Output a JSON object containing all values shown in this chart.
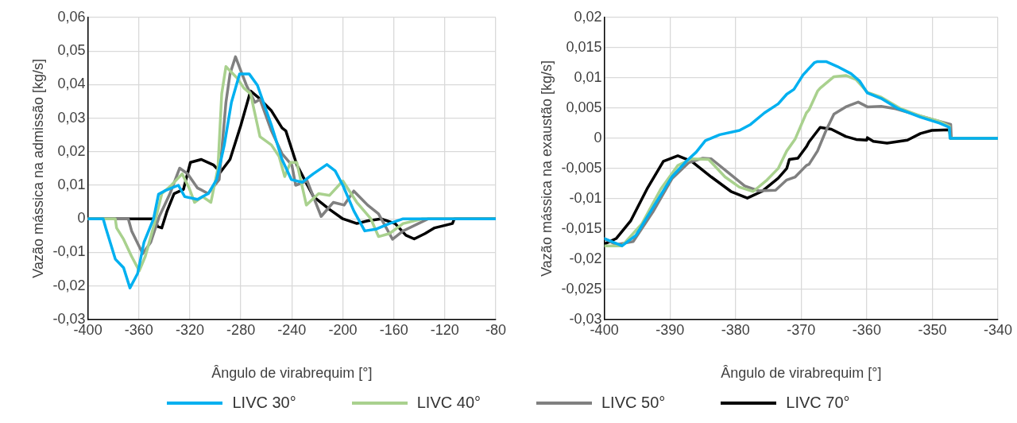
{
  "chart_data": [
    {
      "type": "line",
      "xlabel": "Ângulo de virabrequim [°]",
      "ylabel": "Vazão mássica na admissão [kg/s]",
      "xlim": [
        -400,
        -80
      ],
      "xticks": [
        -400,
        -360,
        -320,
        -280,
        -240,
        -200,
        -160,
        -120,
        -80
      ],
      "ylim": [
        -0.03,
        0.06
      ],
      "yticks": [
        {
          "value": -0.03,
          "label": "-0,03"
        },
        {
          "value": -0.02,
          "label": "-0,02"
        },
        {
          "value": -0.01,
          "label": "-0,01"
        },
        {
          "value": 0,
          "label": "0"
        },
        {
          "value": 0.01,
          "label": "0,01"
        },
        {
          "value": 0.02,
          "label": "0,02"
        },
        {
          "value": 0.03,
          "label": "0,03"
        },
        {
          "value": 0.04,
          "label": "0,04"
        },
        {
          "value": 0.05,
          "label": "0,05"
        },
        {
          "value": 0.06,
          "label": "0,06"
        }
      ],
      "grid": true,
      "legend": "bottom",
      "line_style": "solid",
      "marker": "none",
      "series": [
        {
          "name": "LIVC 30°",
          "color": "#00b0f0",
          "x": [
            -400,
            -388,
            -386,
            -378.5,
            -372,
            -367,
            -361,
            -356,
            -348.5,
            -344.6,
            -340,
            -329,
            -324,
            -314,
            -305.6,
            -299,
            -293,
            -287.4,
            -281,
            -273.5,
            -267,
            -256,
            -247.7,
            -240.4,
            -231.8,
            -223.2,
            -212.5,
            -206,
            -200,
            -191.4,
            -182.8,
            -174.2,
            -163.4,
            -152.7,
            -80
          ],
          "values": [
            0,
            0,
            -0.0027,
            -0.012,
            -0.0146,
            -0.0206,
            -0.0163,
            -0.007,
            0,
            0.0073,
            0.0083,
            0.01,
            0.0066,
            0.0058,
            0.0075,
            0.0117,
            0.022,
            0.0347,
            0.0432,
            0.0432,
            0.0398,
            0.0279,
            0.0177,
            0.0117,
            0.0109,
            0.0134,
            0.0162,
            0.0143,
            0.01,
            0.0024,
            -0.0036,
            -0.0031,
            -0.0014,
            0,
            0
          ]
        },
        {
          "name": "LIVC 40°",
          "color": "#a9d18e",
          "x": [
            -400,
            -378.5,
            -377.5,
            -372,
            -365.7,
            -359.7,
            -355,
            -347.5,
            -342,
            -335.6,
            -326,
            -320.6,
            -316.3,
            -310,
            -303.5,
            -298,
            -295,
            -291.7,
            -288.5,
            -283,
            -277.7,
            -272.4,
            -265,
            -256,
            -250,
            -245.6,
            -241,
            -236.1,
            -228.6,
            -219,
            -210.4,
            -200,
            -189,
            -178,
            -172,
            -163.4,
            -152.7,
            -137.6,
            -80
          ],
          "values": [
            0,
            0,
            -0.0027,
            -0.0061,
            -0.0112,
            -0.0155,
            -0.0112,
            -0.001,
            0.0075,
            0.0096,
            0.0134,
            0.0092,
            0.0049,
            0.0066,
            0.0049,
            0.0151,
            0.0373,
            0.0454,
            0.0441,
            0.042,
            0.039,
            0.0373,
            0.0245,
            0.022,
            0.0186,
            0.0126,
            0.0168,
            0.0168,
            0.0041,
            0.0075,
            0.007,
            0.0113,
            0.0049,
            0,
            -0.0053,
            -0.0044,
            -0.0014,
            0,
            0
          ]
        },
        {
          "name": "LIVC 50°",
          "color": "#808080",
          "x": [
            -400,
            -368.3,
            -365.7,
            -357,
            -350.7,
            -344,
            -335.6,
            -328,
            -321.7,
            -314,
            -305.6,
            -297,
            -291.7,
            -288.5,
            -284.2,
            -280,
            -275.6,
            -269,
            -265,
            -256,
            -247.7,
            -240,
            -237,
            -228,
            -217,
            -207.5,
            -199,
            -191.4,
            -180.6,
            -172,
            -161,
            -152.7,
            -133,
            -80
          ],
          "values": [
            0,
            0,
            -0.0036,
            -0.0104,
            -0.007,
            0.0007,
            0.0075,
            0.0151,
            0.0134,
            0.0092,
            0.0075,
            0.0117,
            0.0347,
            0.0432,
            0.0483,
            0.0441,
            0.0398,
            0.0347,
            0.0356,
            0.0262,
            0.0194,
            0.016,
            0.01,
            0.0113,
            0.0007,
            0.0049,
            0.0041,
            0.0083,
            0.0041,
            0.0015,
            -0.0061,
            -0.0036,
            0,
            0
          ]
        },
        {
          "name": "LIVC 70°",
          "color": "#000000",
          "x": [
            -400,
            -347.5,
            -345.3,
            -342,
            -337.8,
            -332.4,
            -325,
            -319.6,
            -311,
            -301.3,
            -296,
            -288.5,
            -280,
            -272.4,
            -267,
            -256,
            -247.7,
            -244.7,
            -236,
            -223,
            -210.4,
            -200,
            -189,
            -180.6,
            -170,
            -159,
            -150.5,
            -144,
            -135.5,
            -128,
            -114,
            -112.5,
            -80
          ],
          "values": [
            0,
            0,
            -0.0023,
            -0.0027,
            0.0024,
            0.0075,
            0.0088,
            0.0168,
            0.0177,
            0.016,
            0.0139,
            0.0177,
            0.0279,
            0.0381,
            0.0364,
            0.0322,
            0.0271,
            0.0262,
            0.016,
            0.0066,
            0.0028,
            0,
            -0.0014,
            -0.0006,
            0,
            -0.0014,
            -0.0049,
            -0.006,
            -0.0044,
            -0.0027,
            -0.0014,
            0,
            0
          ]
        }
      ]
    },
    {
      "type": "line",
      "xlabel": "Ângulo de virabrequim [°]",
      "ylabel": "Vazão mássica na exaustão [kg/s]",
      "xlim": [
        -400,
        -340
      ],
      "xticks": [
        -400,
        -390,
        -380,
        -370,
        -360,
        -350,
        -340
      ],
      "ylim": [
        -0.03,
        0.02
      ],
      "yticks": [
        {
          "value": -0.03,
          "label": "-0,03"
        },
        {
          "value": -0.025,
          "label": "-0,025"
        },
        {
          "value": -0.02,
          "label": "-0,02"
        },
        {
          "value": -0.015,
          "label": "-0,015"
        },
        {
          "value": -0.01,
          "label": "-0,01"
        },
        {
          "value": -0.005,
          "label": "-0,005"
        },
        {
          "value": 0,
          "label": "0"
        },
        {
          "value": 0.005,
          "label": "0,005"
        },
        {
          "value": 0.01,
          "label": "0,01"
        },
        {
          "value": 0.015,
          "label": "0,015"
        },
        {
          "value": 0.02,
          "label": "0,02"
        }
      ],
      "grid": true,
      "line_style": "solid",
      "marker": "none",
      "series": [
        {
          "color": "#00b0f0",
          "x": [
            -400,
            -397.3,
            -395.2,
            -392.2,
            -389.7,
            -387.5,
            -386,
            -384.6,
            -382.4,
            -379.4,
            -377.7,
            -375.6,
            -373.5,
            -372.2,
            -371.1,
            -369.7,
            -368,
            -367.5,
            -366.2,
            -364.5,
            -362.4,
            -361.1,
            -359.9,
            -357.8,
            -355.2,
            -351.8,
            -348.9,
            -347.4,
            -347.3,
            -340
          ],
          "values": [
            -0.0166,
            -0.0178,
            -0.0161,
            -0.0108,
            -0.0064,
            -0.0038,
            -0.0023,
            -0.0004,
            0.0006,
            0.0013,
            0.0023,
            0.0042,
            0.0057,
            0.0073,
            0.0081,
            0.0105,
            0.0125,
            0.0127,
            0.0127,
            0.0119,
            0.0107,
            0.0095,
            0.0075,
            0.0066,
            0.0049,
            0.0035,
            0.0025,
            0.0018,
            0,
            0
          ]
        },
        {
          "color": "#a9d18e",
          "x": [
            -400,
            -397.3,
            -394.3,
            -391.4,
            -388.8,
            -386.7,
            -384.1,
            -381.6,
            -379.4,
            -377.3,
            -375.2,
            -373.5,
            -372.2,
            -370.9,
            -369.2,
            -368.8,
            -367.5,
            -367.1,
            -365,
            -363.2,
            -361.6,
            -359.9,
            -357.8,
            -354.8,
            -351.8,
            -348.9,
            -347.4,
            -347.3,
            -340
          ],
          "values": [
            -0.0178,
            -0.0178,
            -0.0142,
            -0.0084,
            -0.0045,
            -0.0034,
            -0.0035,
            -0.0064,
            -0.0081,
            -0.0088,
            -0.0069,
            -0.005,
            -0.0021,
            -0.0001,
            0.0042,
            0.0047,
            0.0078,
            0.0083,
            0.0102,
            0.0104,
            0.0097,
            0.0076,
            0.0068,
            0.0049,
            0.0037,
            0.0028,
            0.002,
            0,
            0
          ]
        },
        {
          "color": "#808080",
          "x": [
            -400,
            -398.2,
            -395.6,
            -392.6,
            -389.7,
            -387.1,
            -385,
            -383.7,
            -381.1,
            -378.6,
            -376.5,
            -373.9,
            -372.2,
            -370.9,
            -369.2,
            -368.8,
            -367.5,
            -366.2,
            -365,
            -363.2,
            -361.3,
            -359.9,
            -357.8,
            -355.6,
            -351.8,
            -348.9,
            -347.2,
            -347.1,
            -340
          ],
          "values": [
            -0.0166,
            -0.0176,
            -0.0171,
            -0.0122,
            -0.0067,
            -0.004,
            -0.0033,
            -0.0034,
            -0.0057,
            -0.0079,
            -0.0087,
            -0.0086,
            -0.0069,
            -0.0064,
            -0.0045,
            -0.0043,
            -0.0021,
            0.0013,
            0.004,
            0.0052,
            0.006,
            0.0052,
            0.0053,
            0.0049,
            0.0037,
            0.0028,
            0.0023,
            0,
            0
          ]
        },
        {
          "color": "#000000",
          "x": [
            -400,
            -398.2,
            -396,
            -393.5,
            -391,
            -388.8,
            -386.7,
            -383.7,
            -380.7,
            -378.2,
            -376,
            -373.5,
            -372.2,
            -371.8,
            -370.5,
            -369.2,
            -368.8,
            -367.1,
            -365.4,
            -363.2,
            -361.6,
            -360,
            -359.9,
            -359,
            -356.9,
            -353.8,
            -351.8,
            -350.1,
            -347.4,
            -347.2,
            -340
          ],
          "values": [
            -0.0175,
            -0.0166,
            -0.0137,
            -0.0084,
            -0.0038,
            -0.0029,
            -0.0038,
            -0.0064,
            -0.0088,
            -0.0099,
            -0.0088,
            -0.0066,
            -0.005,
            -0.0035,
            -0.0033,
            -0.0014,
            -0.0006,
            0.0018,
            0.0015,
            0.0003,
            -0.0002,
            -0.0003,
            0.0001,
            -0.0005,
            -0.0008,
            -0.0003,
            0.0008,
            0.0013,
            0.0014,
            0,
            0
          ]
        }
      ]
    }
  ]
}
